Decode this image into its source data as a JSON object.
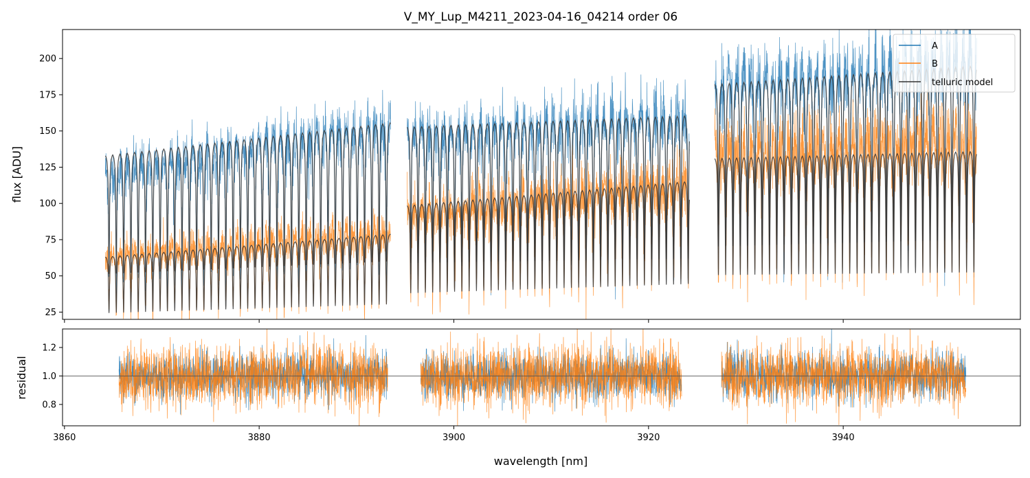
{
  "chart_data": [
    {
      "type": "line",
      "title": "V_MY_Lup_M4211_2023-04-16_04214  order 06",
      "xlabel": "",
      "ylabel": "flux [ADU]",
      "xlim": [
        3859.8,
        3958.2
      ],
      "ylim": [
        20,
        220
      ],
      "yticks": [
        25,
        50,
        75,
        100,
        125,
        150,
        175,
        200
      ],
      "xticks": [
        3860,
        3880,
        3900,
        3920,
        3940
      ],
      "legend": {
        "position": "top-right",
        "entries": [
          {
            "label": "A",
            "color": "#1f77b4"
          },
          {
            "label": "B",
            "color": "#ff7f0e"
          },
          {
            "label": "telluric model",
            "color": "#333333"
          }
        ]
      },
      "segments": [
        {
          "x_start": 3864.2,
          "x_end": 3893.5,
          "A_continuum": [
            125,
            158
          ],
          "B_continuum": [
            66,
            83
          ],
          "model_A": [
            135,
            158
          ],
          "model_B": [
            64,
            80
          ],
          "line_spacing": 0.75
        },
        {
          "x_start": 3895.2,
          "x_end": 3924.2,
          "A_continuum": [
            150,
            165
          ],
          "B_continuum": [
            95,
            118
          ],
          "model_A": [
            155,
            163
          ],
          "model_B": [
            100,
            117
          ],
          "line_spacing": 0.75
        },
        {
          "x_start": 3926.8,
          "x_end": 3953.7,
          "A_continuum": [
            185,
            205
          ],
          "B_continuum": [
            140,
            148
          ],
          "model_A": [
            185,
            198
          ],
          "model_B": [
            133,
            138
          ],
          "line_spacing": 0.75
        }
      ],
      "series": [
        {
          "name": "A",
          "color": "#1f77b4"
        },
        {
          "name": "B",
          "color": "#ff7f0e"
        },
        {
          "name": "telluric model",
          "color": "#333333"
        }
      ]
    },
    {
      "type": "line",
      "title": "",
      "xlabel": "wavelength [nm]",
      "ylabel": "residual",
      "xlim": [
        3859.8,
        3958.2
      ],
      "ylim": [
        0.65,
        1.33
      ],
      "yticks": [
        0.8,
        1.0,
        1.2
      ],
      "xticks": [
        3860,
        3880,
        3900,
        3920,
        3940
      ],
      "reference_line": 1.0,
      "segments": [
        {
          "x_start": 3865.6,
          "x_end": 3893.2
        },
        {
          "x_start": 3896.6,
          "x_end": 3923.4
        },
        {
          "x_start": 3927.5,
          "x_end": 3952.6
        }
      ],
      "series": [
        {
          "name": "A",
          "color": "#1f77b4"
        },
        {
          "name": "B",
          "color": "#ff7f0e"
        }
      ]
    }
  ]
}
